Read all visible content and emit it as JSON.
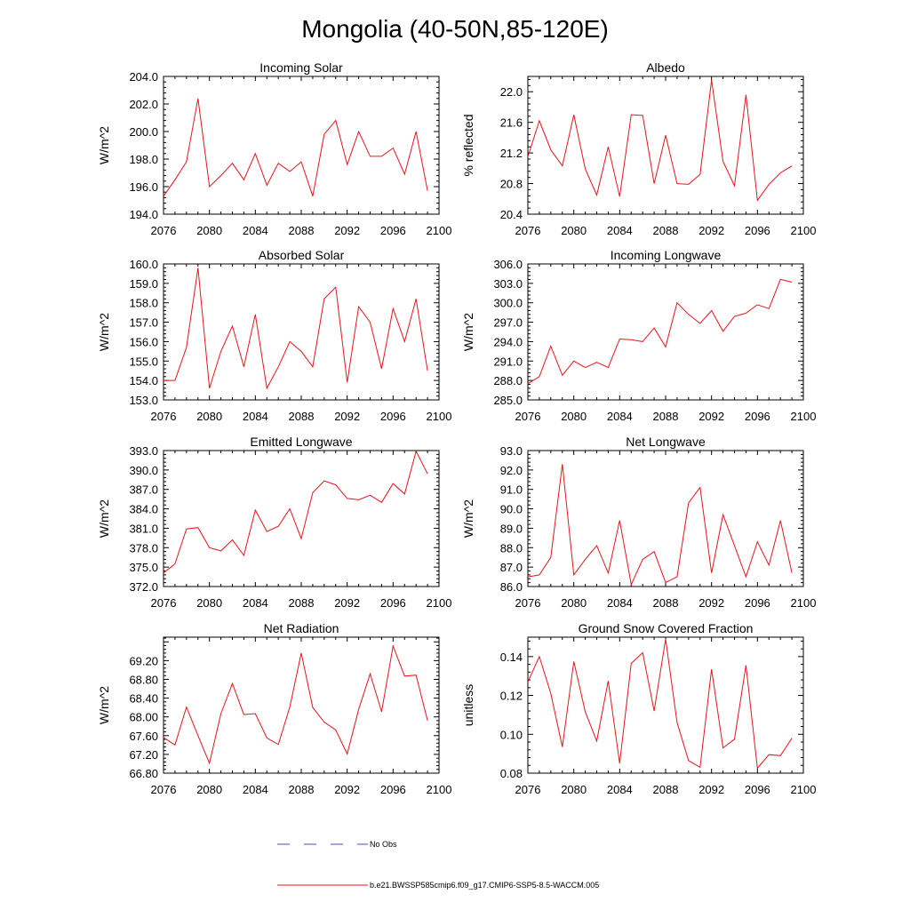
{
  "figure": {
    "title": "Mongolia (40-50N,85-120E)",
    "line_color": "#e8141c",
    "obs_color": "#4a4ac8"
  },
  "legend": {
    "obs_label": "No Obs",
    "model_label": "b.e21.BWSSP585cmip6.f09_g17.CMIP6-SSP5-8.5-WACCM.005"
  },
  "chart_data": [
    {
      "type": "line",
      "title": "Incoming Solar",
      "xlabel": "",
      "ylabel": "W/m^2",
      "xlim": [
        2076,
        2100
      ],
      "xticks": [
        "2076",
        "2080",
        "2084",
        "2088",
        "2092",
        "2096",
        "2100"
      ],
      "ylim": [
        194,
        204
      ],
      "yticks": [
        "194.0",
        "196.0",
        "198.0",
        "200.0",
        "202.0",
        "204.0"
      ],
      "x": [
        2076,
        2077,
        2078,
        2079,
        2080,
        2081,
        2082,
        2083,
        2084,
        2085,
        2086,
        2087,
        2088,
        2089,
        2090,
        2091,
        2092,
        2093,
        2094,
        2095,
        2096,
        2097,
        2098,
        2099
      ],
      "values": [
        195.3,
        196.5,
        197.8,
        202.4,
        196.0,
        196.8,
        197.7,
        196.5,
        198.4,
        196.1,
        197.7,
        197.1,
        197.8,
        195.3,
        199.8,
        200.8,
        197.6,
        200.0,
        198.2,
        198.2,
        198.8,
        196.9,
        200.0,
        195.7
      ]
    },
    {
      "type": "line",
      "title": "Albedo",
      "xlabel": "",
      "ylabel": "% reflected",
      "xlim": [
        2076,
        2100
      ],
      "xticks": [
        "2076",
        "2080",
        "2084",
        "2088",
        "2092",
        "2096",
        "2100"
      ],
      "ylim": [
        20.4,
        22.2
      ],
      "yticks": [
        "20.4",
        "20.8",
        "21.2",
        "21.6",
        "22.0"
      ],
      "x": [
        2076,
        2077,
        2078,
        2079,
        2080,
        2081,
        2082,
        2083,
        2084,
        2085,
        2086,
        2087,
        2088,
        2089,
        2090,
        2091,
        2092,
        2093,
        2094,
        2095,
        2096,
        2097,
        2098,
        2099
      ],
      "values": [
        21.15,
        21.62,
        21.24,
        21.03,
        21.7,
        20.99,
        20.65,
        21.28,
        20.63,
        21.7,
        21.69,
        20.8,
        21.43,
        20.8,
        20.79,
        20.92,
        22.15,
        21.09,
        20.77,
        21.96,
        20.58,
        20.79,
        20.94,
        21.03
      ]
    },
    {
      "type": "line",
      "title": "Absorbed Solar",
      "xlabel": "",
      "ylabel": "W/m^2",
      "xlim": [
        2076,
        2100
      ],
      "xticks": [
        "2076",
        "2080",
        "2084",
        "2088",
        "2092",
        "2096",
        "2100"
      ],
      "ylim": [
        153,
        160
      ],
      "yticks": [
        "153.0",
        "154.0",
        "155.0",
        "156.0",
        "157.0",
        "158.0",
        "159.0",
        "160.0"
      ],
      "x": [
        2076,
        2077,
        2078,
        2079,
        2080,
        2081,
        2082,
        2083,
        2084,
        2085,
        2086,
        2087,
        2088,
        2089,
        2090,
        2091,
        2092,
        2093,
        2094,
        2095,
        2096,
        2097,
        2098,
        2099
      ],
      "values": [
        154.0,
        154.0,
        155.7,
        159.8,
        153.6,
        155.5,
        156.8,
        154.7,
        157.4,
        153.6,
        154.7,
        156.0,
        155.5,
        154.7,
        158.2,
        158.8,
        153.9,
        157.8,
        157.0,
        154.6,
        157.7,
        156.0,
        158.2,
        154.5
      ]
    },
    {
      "type": "line",
      "title": "Incoming Longwave",
      "xlabel": "",
      "ylabel": "W/m^2",
      "xlim": [
        2076,
        2100
      ],
      "xticks": [
        "2076",
        "2080",
        "2084",
        "2088",
        "2092",
        "2096",
        "2100"
      ],
      "ylim": [
        285,
        306
      ],
      "yticks": [
        "285.0",
        "288.0",
        "291.0",
        "294.0",
        "297.0",
        "300.0",
        "303.0",
        "306.0"
      ],
      "x": [
        2076,
        2077,
        2078,
        2079,
        2080,
        2081,
        2082,
        2083,
        2084,
        2085,
        2086,
        2087,
        2088,
        2089,
        2090,
        2091,
        2092,
        2093,
        2094,
        2095,
        2096,
        2097,
        2098,
        2099
      ],
      "values": [
        287.5,
        288.6,
        293.3,
        288.8,
        291.0,
        290.0,
        290.8,
        290.0,
        294.4,
        294.3,
        294.0,
        296.1,
        293.2,
        300.0,
        298.2,
        296.8,
        298.8,
        295.6,
        297.9,
        298.4,
        299.7,
        299.1,
        303.6,
        303.2
      ]
    },
    {
      "type": "line",
      "title": "Emitted Longwave",
      "xlabel": "",
      "ylabel": "W/m^2",
      "xlim": [
        2076,
        2100
      ],
      "xticks": [
        "2076",
        "2080",
        "2084",
        "2088",
        "2092",
        "2096",
        "2100"
      ],
      "ylim": [
        372,
        393
      ],
      "yticks": [
        "372.0",
        "375.0",
        "378.0",
        "381.0",
        "384.0",
        "387.0",
        "390.0",
        "393.0"
      ],
      "x": [
        2076,
        2077,
        2078,
        2079,
        2080,
        2081,
        2082,
        2083,
        2084,
        2085,
        2086,
        2087,
        2088,
        2089,
        2090,
        2091,
        2092,
        2093,
        2094,
        2095,
        2096,
        2097,
        2098,
        2099
      ],
      "values": [
        374.1,
        375.5,
        380.9,
        381.1,
        378.0,
        377.5,
        379.2,
        376.8,
        383.8,
        380.5,
        381.3,
        384.0,
        379.4,
        386.5,
        388.3,
        387.7,
        385.6,
        385.4,
        386.1,
        385.0,
        387.9,
        386.3,
        392.9,
        389.4
      ]
    },
    {
      "type": "line",
      "title": "Net Longwave",
      "xlabel": "",
      "ylabel": "W/m^2",
      "xlim": [
        2076,
        2100
      ],
      "xticks": [
        "2076",
        "2080",
        "2084",
        "2088",
        "2092",
        "2096",
        "2100"
      ],
      "ylim": [
        86,
        93
      ],
      "yticks": [
        "86.0",
        "87.0",
        "88.0",
        "89.0",
        "90.0",
        "91.0",
        "92.0",
        "93.0"
      ],
      "x": [
        2076,
        2077,
        2078,
        2079,
        2080,
        2081,
        2082,
        2083,
        2084,
        2085,
        2086,
        2087,
        2088,
        2089,
        2090,
        2091,
        2092,
        2093,
        2094,
        2095,
        2096,
        2097,
        2098,
        2099
      ],
      "values": [
        86.5,
        86.6,
        87.5,
        92.3,
        86.6,
        87.4,
        88.1,
        86.7,
        89.4,
        86.1,
        87.4,
        87.8,
        86.2,
        86.5,
        90.3,
        91.1,
        86.7,
        89.7,
        88.1,
        86.5,
        88.3,
        87.1,
        89.4,
        86.7
      ]
    },
    {
      "type": "line",
      "title": "Net Radiation",
      "xlabel": "",
      "ylabel": "W/m^2",
      "xlim": [
        2076,
        2100
      ],
      "xticks": [
        "2076",
        "2080",
        "2084",
        "2088",
        "2092",
        "2096",
        "2100"
      ],
      "ylim": [
        66.8,
        69.7
      ],
      "yticks": [
        "66.80",
        "67.20",
        "67.60",
        "68.00",
        "68.40",
        "68.80",
        "69.20"
      ],
      "x": [
        2076,
        2077,
        2078,
        2079,
        2080,
        2081,
        2082,
        2083,
        2084,
        2085,
        2086,
        2087,
        2088,
        2089,
        2090,
        2091,
        2092,
        2093,
        2094,
        2095,
        2096,
        2097,
        2098,
        2099
      ],
      "values": [
        67.56,
        67.4,
        68.21,
        67.6,
        67.01,
        68.07,
        68.71,
        68.05,
        68.07,
        67.55,
        67.41,
        68.21,
        69.36,
        68.2,
        67.89,
        67.72,
        67.21,
        68.16,
        68.92,
        68.11,
        69.51,
        68.87,
        68.89,
        67.92
      ]
    },
    {
      "type": "line",
      "title": "Ground Snow Covered Fraction",
      "xlabel": "",
      "ylabel": "unitless",
      "xlim": [
        2076,
        2100
      ],
      "xticks": [
        "2076",
        "2080",
        "2084",
        "2088",
        "2092",
        "2096",
        "2100"
      ],
      "ylim": [
        0.08,
        0.15
      ],
      "yticks": [
        "0.08",
        "0.10",
        "0.12",
        "0.14"
      ],
      "x": [
        2076,
        2077,
        2078,
        2079,
        2080,
        2081,
        2082,
        2083,
        2084,
        2085,
        2086,
        2087,
        2088,
        2089,
        2090,
        2091,
        2092,
        2093,
        2094,
        2095,
        2096,
        2097,
        2098,
        2099
      ],
      "values": [
        0.127,
        0.14,
        0.121,
        0.0935,
        0.1375,
        0.1115,
        0.0965,
        0.1275,
        0.085,
        0.1365,
        0.142,
        0.112,
        0.149,
        0.106,
        0.0865,
        0.083,
        0.1335,
        0.093,
        0.0975,
        0.1355,
        0.0825,
        0.0895,
        0.089,
        0.098
      ]
    }
  ]
}
